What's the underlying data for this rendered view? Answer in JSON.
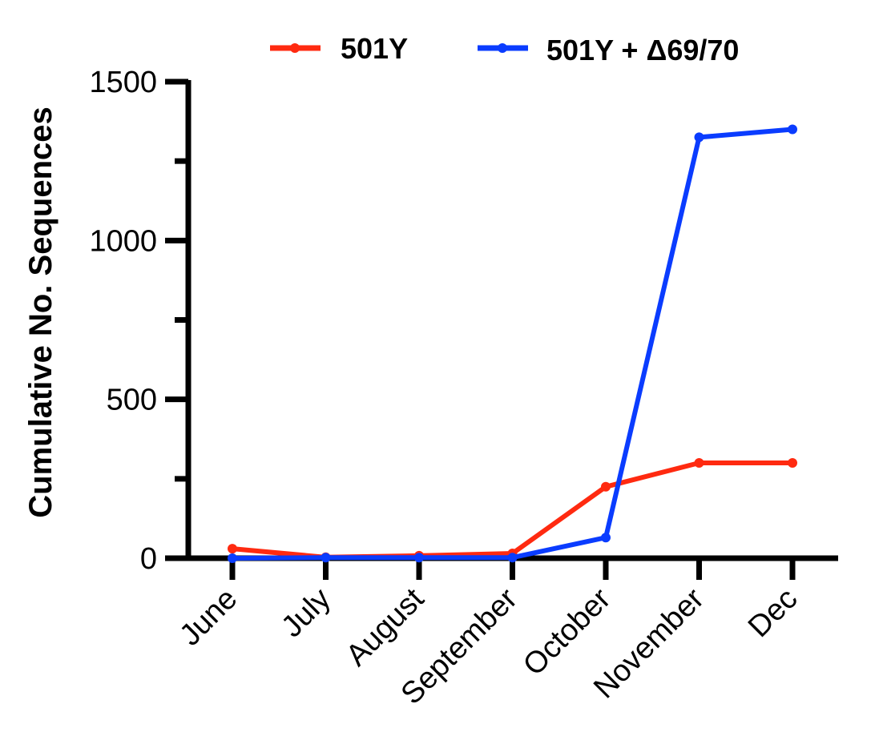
{
  "chart_data": {
    "type": "line",
    "title": "",
    "xlabel": "",
    "ylabel": "Cumulative No. Sequences",
    "categories": [
      "June",
      "July",
      "August",
      "September",
      "October",
      "November",
      "Dec"
    ],
    "ylim": [
      0,
      1500
    ],
    "y_major_ticks": [
      0,
      500,
      1000,
      1500
    ],
    "y_minor_ticks": [
      250,
      750,
      1250
    ],
    "grid": false,
    "legend_position": "top",
    "series": [
      {
        "name": "501Y",
        "color": "#ff2a10",
        "values": [
          30,
          3,
          8,
          15,
          225,
          300,
          300
        ]
      },
      {
        "name": "501Y + Δ69/70",
        "color": "#0a3cff",
        "values": [
          0,
          2,
          2,
          2,
          65,
          1325,
          1350
        ]
      }
    ]
  }
}
